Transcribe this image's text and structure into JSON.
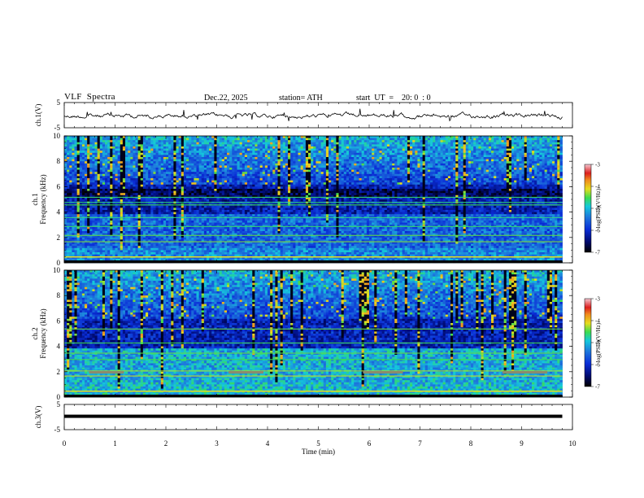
{
  "header": {
    "title": "VLF  Spectra",
    "date": "Dec.22, 2025",
    "station": "station= ATH",
    "start": "start  UT  =    20: 0  : 0"
  },
  "chart_data": [
    {
      "id": "ch1-waveform",
      "type": "line",
      "ylabel": "ch.1(V)",
      "ylim": [
        -5,
        5
      ],
      "yticks": [
        "5",
        "-5"
      ],
      "xlim": [
        0,
        10
      ],
      "description_of_trace": "noisy waveform near 0 V",
      "color": "#000000"
    },
    {
      "id": "ch1-spectrogram",
      "type": "heatmap",
      "ylabel": "ch.1 Frequency (kHz)",
      "ylim": [
        0,
        10
      ],
      "yticks": [
        "0",
        "2",
        "4",
        "6",
        "8",
        "10"
      ],
      "xlim": [
        0,
        10
      ],
      "colorbar": {
        "label": "log(PSD)(V²/Hz)",
        "range": [
          -7,
          -3
        ],
        "ticks": [
          "-3",
          "-4",
          "-5",
          "-6",
          "-7"
        ]
      }
    },
    {
      "id": "ch2-spectrogram",
      "type": "heatmap",
      "ylabel": "ch.2 Frequency (kHz)",
      "ylim": [
        0,
        10
      ],
      "yticks": [
        "0",
        "2",
        "4",
        "6",
        "8",
        "10"
      ],
      "xlim": [
        0,
        10
      ],
      "colorbar": {
        "label": "log(PSD)(V²/Hz)",
        "range": [
          -7,
          -3
        ],
        "ticks": [
          "-3",
          "-4",
          "-5",
          "-6",
          "-7"
        ]
      }
    },
    {
      "id": "ch3-waveform",
      "type": "line",
      "ylabel": "ch.3(V)",
      "ylim": [
        -5,
        5
      ],
      "yticks": [
        "5",
        "-5"
      ],
      "xlim": [
        0,
        10
      ],
      "description_of_trace": "flat thick line near -1 V",
      "color": "#000000"
    }
  ],
  "xaxis": {
    "label": "Time  (min)",
    "ticks": [
      "0",
      "1",
      "2",
      "3",
      "4",
      "5",
      "6",
      "7",
      "8",
      "9",
      "10"
    ],
    "data_end": 9.8
  },
  "colors": {
    "black": "#000000",
    "navy": "#000a6e",
    "blue": "#0a2dd7",
    "mid_blue": "#1e78dc",
    "cyan": "#14c8dc",
    "green": "#3cdc50",
    "yellow": "#e6dc1e",
    "orange": "#f08c1e",
    "red": "#dc1e1e",
    "pink": "#f5c8d2"
  }
}
